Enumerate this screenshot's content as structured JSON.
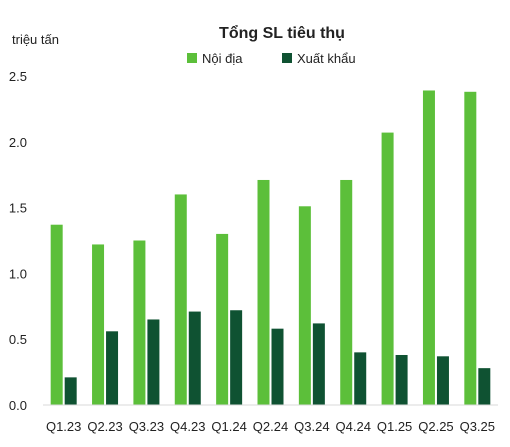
{
  "chart_data": {
    "type": "bar",
    "title": "Tổng SL tiêu thụ",
    "ylabel": "triệu tấn",
    "xlabel": "",
    "categories": [
      "Q1.23",
      "Q2.23",
      "Q3.23",
      "Q4.23",
      "Q1.24",
      "Q2.24",
      "Q3.24",
      "Q4.24",
      "Q1.25",
      "Q2.25",
      "Q3.25"
    ],
    "series": [
      {
        "name": "Nội địa",
        "color": "#5cbf3a",
        "values": [
          1.37,
          1.22,
          1.25,
          1.6,
          1.3,
          1.71,
          1.51,
          1.71,
          2.07,
          2.39,
          2.38
        ]
      },
      {
        "name": "Xuất khẩu",
        "color": "#0f5232",
        "values": [
          0.21,
          0.56,
          0.65,
          0.71,
          0.72,
          0.58,
          0.62,
          0.4,
          0.38,
          0.37,
          0.28
        ]
      }
    ],
    "ylim": [
      0,
      2.5
    ],
    "yticks": [
      "0.0",
      "0.5",
      "1.0",
      "1.5",
      "2.0",
      "2.5"
    ],
    "grid": false,
    "legend_position": "top-center"
  }
}
